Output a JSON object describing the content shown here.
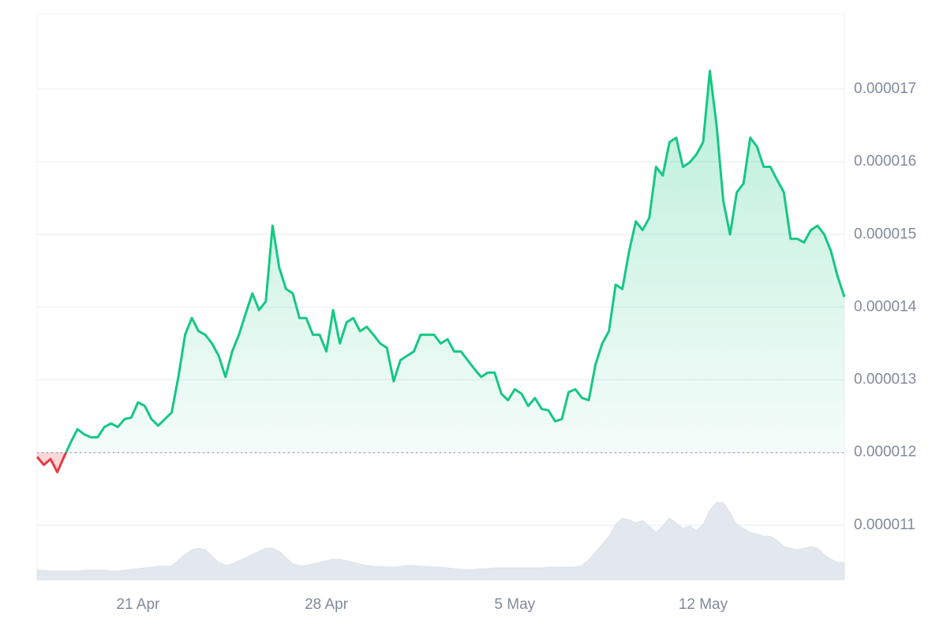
{
  "chart_data": {
    "type": "line",
    "categories": [
      null,
      null,
      null,
      null,
      null,
      null,
      null,
      null,
      null,
      null,
      null,
      null,
      null,
      null,
      null,
      "21 Apr",
      null,
      null,
      null,
      null,
      null,
      null,
      null,
      null,
      null,
      null,
      null,
      null,
      null,
      null,
      null,
      null,
      null,
      null,
      null,
      null,
      null,
      null,
      null,
      null,
      null,
      null,
      null,
      "28 Apr",
      null,
      null,
      null,
      null,
      null,
      null,
      null,
      null,
      null,
      null,
      null,
      null,
      null,
      null,
      null,
      null,
      null,
      null,
      null,
      null,
      null,
      null,
      null,
      null,
      null,
      null,
      null,
      "5 May",
      null,
      null,
      null,
      null,
      null,
      null,
      null,
      null,
      null,
      null,
      null,
      null,
      null,
      null,
      null,
      null,
      null,
      null,
      null,
      null,
      null,
      null,
      null,
      null,
      null,
      null,
      null,
      "12 May",
      null,
      null,
      null,
      null,
      null,
      null,
      null,
      null,
      null,
      null,
      null,
      null,
      null,
      null,
      null,
      null,
      null,
      null,
      null,
      null,
      null
    ],
    "values": [
      1.194e-05,
      1.183e-05,
      1.191e-05,
      1.173e-05,
      1.194e-05,
      1.214e-05,
      1.232e-05,
      1.225e-05,
      1.221e-05,
      1.221e-05,
      1.235e-05,
      1.24e-05,
      1.235e-05,
      1.246e-05,
      1.248e-05,
      1.269e-05,
      1.264e-05,
      1.246e-05,
      1.237e-05,
      1.246e-05,
      1.255e-05,
      1.304e-05,
      1.362e-05,
      1.385e-05,
      1.367e-05,
      1.362e-05,
      1.35e-05,
      1.333e-05,
      1.304e-05,
      1.339e-05,
      1.362e-05,
      1.391e-05,
      1.419e-05,
      1.396e-05,
      1.408e-05,
      1.512e-05,
      1.454e-05,
      1.425e-05,
      1.419e-05,
      1.385e-05,
      1.385e-05,
      1.362e-05,
      1.362e-05,
      1.339e-05,
      1.396e-05,
      1.35e-05,
      1.379e-05,
      1.385e-05,
      1.367e-05,
      1.373e-05,
      1.362e-05,
      1.35e-05,
      1.344e-05,
      1.298e-05,
      1.327e-05,
      1.333e-05,
      1.339e-05,
      1.362e-05,
      1.362e-05,
      1.362e-05,
      1.35e-05,
      1.356e-05,
      1.339e-05,
      1.339e-05,
      1.327e-05,
      1.315e-05,
      1.304e-05,
      1.31e-05,
      1.31e-05,
      1.281e-05,
      1.272e-05,
      1.287e-05,
      1.281e-05,
      1.264e-05,
      1.275e-05,
      1.26e-05,
      1.258e-05,
      1.243e-05,
      1.246e-05,
      1.283e-05,
      1.287e-05,
      1.275e-05,
      1.272e-05,
      1.321e-05,
      1.35e-05,
      1.367e-05,
      1.431e-05,
      1.425e-05,
      1.477e-05,
      1.518e-05,
      1.506e-05,
      1.523e-05,
      1.593e-05,
      1.581e-05,
      1.627e-05,
      1.633e-05,
      1.593e-05,
      1.599e-05,
      1.61e-05,
      1.627e-05,
      1.725e-05,
      1.65e-05,
      1.546e-05,
      1.5e-05,
      1.558e-05,
      1.57e-05,
      1.633e-05,
      1.621e-05,
      1.593e-05,
      1.593e-05,
      1.575e-05,
      1.558e-05,
      1.494e-05,
      1.494e-05,
      1.489e-05,
      1.506e-05,
      1.512e-05,
      1.5e-05,
      1.477e-05,
      1.442e-05,
      1.414e-05
    ],
    "volume": [
      12,
      12,
      11,
      11,
      11,
      11,
      11,
      12,
      12,
      12,
      12,
      11,
      11,
      12,
      13,
      14,
      15,
      16,
      17,
      17,
      17,
      25,
      32,
      38,
      40,
      38,
      30,
      22,
      18,
      20,
      24,
      28,
      32,
      36,
      40,
      40,
      36,
      28,
      20,
      18,
      18,
      20,
      22,
      24,
      26,
      26,
      24,
      22,
      20,
      18,
      17,
      17,
      16,
      16,
      17,
      18,
      18,
      17,
      17,
      16,
      16,
      15,
      14,
      13,
      13,
      13,
      14,
      14,
      15,
      15,
      15,
      15,
      15,
      15,
      15,
      15,
      16,
      16,
      16,
      16,
      16,
      18,
      25,
      35,
      45,
      55,
      70,
      78,
      76,
      72,
      75,
      68,
      60,
      68,
      78,
      72,
      65,
      68,
      62,
      70,
      88,
      98,
      98,
      85,
      70,
      65,
      60,
      58,
      55,
      55,
      50,
      42,
      40,
      38,
      40,
      42,
      40,
      32,
      26,
      22,
      22
    ],
    "baseline": 1.2e-05,
    "color": "#16c784",
    "down_color": "#ea3943",
    "volume_color": "#e3e7ee",
    "ylim": [
      1.025e-05,
      1.803e-05
    ],
    "yticks": [
      1.1e-05,
      1.2e-05,
      1.3e-05,
      1.4e-05,
      1.5e-05,
      1.6e-05,
      1.7e-05
    ],
    "grid": true
  }
}
